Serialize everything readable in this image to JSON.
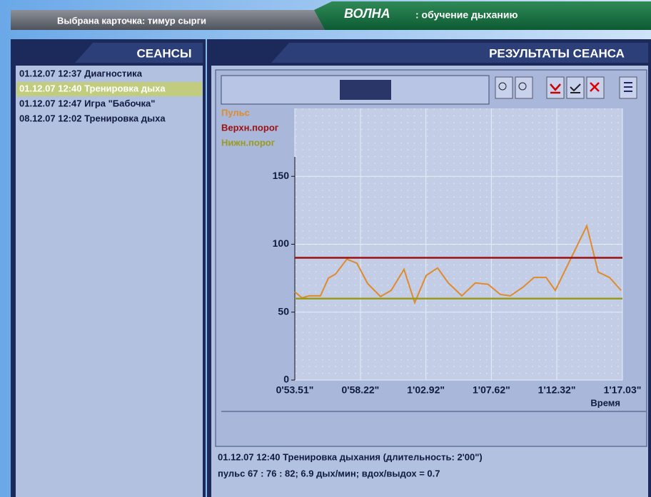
{
  "header": {
    "card": "Выбрана карточка: тимур сырги",
    "app_name": "ВОЛНА",
    "app_subtitle": ": обучение дыханию"
  },
  "sessions": {
    "title": "СЕАНСЫ",
    "items": [
      "01.12.07 12:37 Диагностика",
      "01.12.07 12:40 Тренировка дыха",
      "01.12.07 12:47 Игра \"Бабочка\"",
      "08.12.07 12:02 Тренировка дыха"
    ]
  },
  "results": {
    "title": "РЕЗУЛЬТАТЫ СЕАНСА",
    "summary": [
      "01.12.07 12:40  Тренировка дыхания (длительность: 2'00\")",
      "пульс 67 : 76 : 82; 6.9 дых/мин; вдох/выдох = 0.7"
    ]
  },
  "chart_data": {
    "type": "line",
    "x_label": "Время",
    "xlim": [
      53.51,
      77.03
    ],
    "xticks": [
      {
        "value": 53.51,
        "label": "0'53.51\""
      },
      {
        "value": 58.22,
        "label": "0'58.22\""
      },
      {
        "value": 62.92,
        "label": "1'02.92\""
      },
      {
        "value": 67.62,
        "label": "1'07.62\""
      },
      {
        "value": 72.32,
        "label": "1'12.32\""
      },
      {
        "value": 77.03,
        "label": "1'17.03\""
      }
    ],
    "ylim": [
      0,
      200
    ],
    "yticks": [
      0,
      50,
      100,
      150
    ],
    "grid": true,
    "series": [
      {
        "name": "Пульс",
        "color": "#e08a2a",
        "x": [
          53.51,
          54.02,
          54.53,
          55.35,
          55.92,
          56.43,
          57.25,
          57.97,
          58.74,
          59.66,
          60.43,
          61.35,
          62.12,
          62.94,
          63.76,
          64.53,
          65.5,
          66.47,
          67.38,
          68.27,
          68.98,
          69.91,
          70.68,
          71.55,
          72.21,
          74.47,
          75.29,
          76.11,
          76.93
        ],
        "values": [
          65,
          60.5,
          62,
          62,
          75,
          78,
          89,
          86,
          71,
          61.5,
          66,
          81.5,
          57,
          77,
          82.5,
          71.5,
          62,
          71.5,
          70.5,
          63,
          62,
          68.5,
          75.5,
          75.5,
          66,
          113.5,
          79.5,
          75.5,
          66
        ]
      },
      {
        "name": "Верхн.порог",
        "color": "#9b1010",
        "x": [
          53.51,
          77.03
        ],
        "values": [
          90,
          90
        ]
      },
      {
        "name": "Нижн.порог",
        "color": "#9a9a20",
        "x": [
          53.51,
          77.03
        ],
        "values": [
          60,
          60
        ]
      }
    ]
  }
}
